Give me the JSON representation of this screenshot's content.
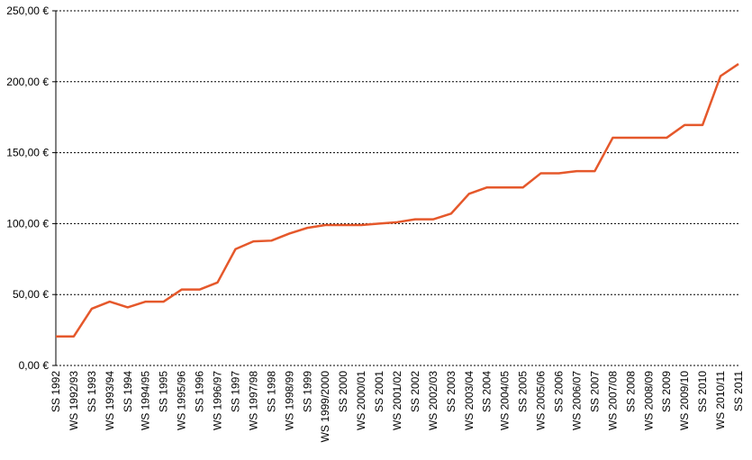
{
  "chart_data": {
    "type": "line",
    "categories": [
      "SS 1992",
      "WS 1992/93",
      "SS 1993",
      "WS 1993/94",
      "SS 1994",
      "WS 1994/95",
      "SS 1995",
      "WS 1995/96",
      "SS 1996",
      "WS 1996/97",
      "SS 1997",
      "WS 1997/98",
      "SS 1998",
      "WS 1998/99",
      "SS 1999",
      "WS 1999/2000",
      "SS 2000",
      "WS 2000/01",
      "SS 2001",
      "WS 2001/02",
      "SS 2002",
      "WS 2002/03",
      "SS 2003",
      "WS 2003/04",
      "SS 2004",
      "WS 2004/05",
      "SS 2005",
      "WS 2005/06",
      "SS 2006",
      "WS 2006/07",
      "SS 2007",
      "WS 2007/08",
      "SS 2008",
      "WS 2008/09",
      "SS 2009",
      "WS 2009/10",
      "SS 2010",
      "WS 2010/11",
      "SS 2011"
    ],
    "values": [
      20.5,
      20.5,
      40,
      45,
      41,
      45,
      45,
      53.5,
      53.5,
      58.5,
      82,
      87.5,
      88,
      93,
      97,
      99,
      99,
      99,
      100,
      101,
      103,
      103,
      107,
      121,
      125.5,
      125.5,
      125.5,
      135.5,
      135.5,
      137,
      137,
      160.5,
      160.5,
      160.5,
      160.5,
      169.5,
      169.5,
      204,
      212.5
    ],
    "color": "#e5582b",
    "ylim": [
      0,
      250
    ],
    "yticks": [
      {
        "value": 0,
        "label": "0,00 €"
      },
      {
        "value": 50,
        "label": "50,00 €"
      },
      {
        "value": 100,
        "label": "100,00 €"
      },
      {
        "value": 150,
        "label": "150,00 €"
      },
      {
        "value": 200,
        "label": "200,00 €"
      },
      {
        "value": 250,
        "label": "250,00 €"
      }
    ],
    "grid": true
  }
}
